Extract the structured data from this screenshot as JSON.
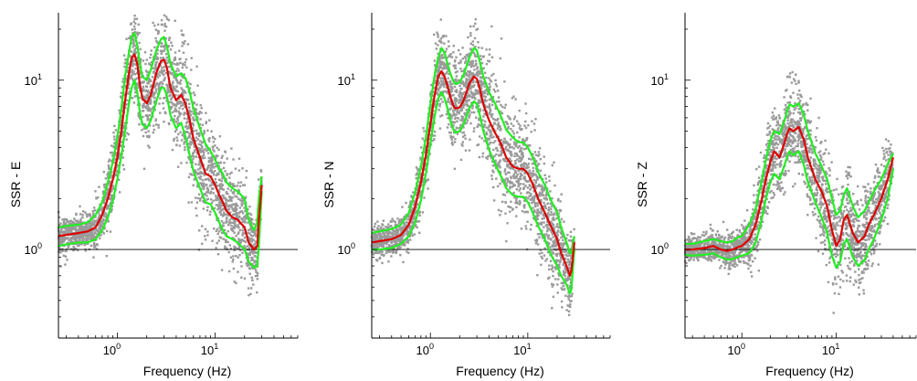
{
  "chart_data": [
    {
      "type": "scatter",
      "xscale": "log",
      "yscale": "log",
      "xlabel": "Frequency (Hz)",
      "ylabel": "SSR - E",
      "xlim": [
        0.25,
        70
      ],
      "ylim": [
        0.3,
        25
      ],
      "xticks": [
        {
          "base": "10",
          "exp": "0",
          "value": 1
        },
        {
          "base": "10",
          "exp": "1",
          "value": 10
        }
      ],
      "yticks": [
        {
          "base": "10",
          "exp": "0",
          "value": 1
        },
        {
          "base": "10",
          "exp": "1",
          "value": 10
        }
      ],
      "reference_line": 1,
      "colors": {
        "scatter": "#9a9a9a",
        "mean": "#dd0000",
        "bounds": "#22ee22",
        "axis": "#000000"
      },
      "x": [
        0.25,
        0.3,
        0.4,
        0.5,
        0.6,
        0.7,
        0.8,
        0.9,
        1.0,
        1.1,
        1.2,
        1.3,
        1.4,
        1.5,
        1.6,
        1.7,
        1.8,
        2.0,
        2.2,
        2.5,
        2.8,
        3.0,
        3.2,
        3.5,
        4.0,
        4.5,
        5.0,
        5.5,
        6.0,
        7.0,
        8.0,
        9.0,
        10.0,
        11.0,
        12.0,
        13.0,
        15.0,
        17.0,
        20.0,
        22.0,
        25.0,
        27.0,
        28.0,
        30.0
      ],
      "series": [
        {
          "name": "mean",
          "values": [
            1.2,
            1.22,
            1.25,
            1.28,
            1.35,
            1.6,
            2.0,
            2.6,
            3.5,
            5.0,
            7.5,
            10.5,
            13.5,
            14.2,
            12.5,
            9.5,
            7.8,
            7.3,
            8.2,
            11.0,
            13.0,
            13.2,
            12.0,
            9.0,
            7.6,
            8.2,
            7.2,
            5.8,
            4.5,
            3.5,
            2.8,
            2.7,
            2.4,
            2.1,
            1.9,
            1.7,
            1.55,
            1.5,
            1.35,
            1.1,
            1.0,
            1.05,
            1.5,
            2.4
          ]
        },
        {
          "name": "upper",
          "values": [
            1.35,
            1.38,
            1.4,
            1.45,
            1.6,
            1.9,
            2.5,
            3.3,
            4.6,
            6.8,
            10.5,
            14.0,
            18.0,
            19.0,
            16.0,
            12.5,
            10.5,
            10.0,
            11.5,
            15.0,
            17.5,
            18.0,
            16.0,
            12.5,
            10.5,
            11.0,
            10.2,
            8.5,
            6.8,
            5.2,
            4.2,
            3.8,
            3.4,
            3.0,
            2.8,
            2.5,
            2.3,
            2.2,
            2.0,
            1.5,
            1.3,
            1.45,
            2.0,
            2.7
          ]
        },
        {
          "name": "lower",
          "values": [
            1.05,
            1.07,
            1.1,
            1.1,
            1.15,
            1.3,
            1.55,
            1.95,
            2.6,
            3.6,
            5.0,
            7.0,
            9.0,
            10.0,
            8.5,
            6.5,
            5.5,
            5.2,
            5.8,
            7.5,
            9.0,
            9.0,
            8.2,
            6.2,
            5.2,
            5.6,
            4.6,
            3.6,
            2.9,
            2.3,
            1.9,
            1.85,
            1.65,
            1.45,
            1.3,
            1.2,
            1.15,
            1.1,
            1.0,
            0.85,
            0.78,
            0.8,
            1.05,
            2.2
          ]
        }
      ]
    },
    {
      "type": "scatter",
      "xscale": "log",
      "yscale": "log",
      "xlabel": "Frequency (Hz)",
      "ylabel": "SSR - N",
      "xlim": [
        0.25,
        70
      ],
      "ylim": [
        0.3,
        25
      ],
      "xticks": [
        {
          "base": "10",
          "exp": "0",
          "value": 1
        },
        {
          "base": "10",
          "exp": "1",
          "value": 10
        }
      ],
      "yticks": [
        {
          "base": "10",
          "exp": "0",
          "value": 1
        },
        {
          "base": "10",
          "exp": "1",
          "value": 10
        }
      ],
      "reference_line": 1,
      "colors": {
        "scatter": "#9a9a9a",
        "mean": "#dd0000",
        "bounds": "#22ee22",
        "axis": "#000000"
      },
      "x": [
        0.25,
        0.3,
        0.4,
        0.5,
        0.6,
        0.7,
        0.8,
        0.9,
        1.0,
        1.1,
        1.2,
        1.3,
        1.4,
        1.5,
        1.6,
        1.7,
        1.8,
        2.0,
        2.2,
        2.5,
        2.8,
        3.0,
        3.2,
        3.5,
        4.0,
        4.5,
        5.0,
        5.5,
        6.0,
        7.0,
        8.0,
        9.0,
        10.0,
        11.0,
        12.0,
        13.0,
        15.0,
        17.0,
        20.0,
        22.0,
        25.0,
        27.0,
        28.0,
        30.0
      ],
      "series": [
        {
          "name": "mean",
          "values": [
            1.1,
            1.12,
            1.15,
            1.22,
            1.4,
            1.8,
            2.5,
            3.6,
            5.5,
            8.0,
            10.5,
            11.3,
            10.5,
            9.2,
            8.0,
            7.2,
            6.8,
            6.9,
            7.6,
            9.5,
            10.5,
            10.2,
            9.0,
            7.2,
            5.8,
            5.0,
            4.5,
            4.0,
            3.5,
            3.1,
            3.0,
            3.0,
            2.8,
            2.5,
            2.2,
            1.95,
            1.65,
            1.4,
            1.15,
            0.95,
            0.8,
            0.7,
            0.75,
            1.1
          ]
        },
        {
          "name": "upper",
          "values": [
            1.25,
            1.28,
            1.32,
            1.4,
            1.65,
            2.2,
            3.1,
            4.6,
            7.2,
            10.5,
            13.5,
            15.5,
            14.5,
            12.5,
            11.0,
            10.0,
            9.5,
            9.7,
            10.8,
            13.5,
            15.5,
            15.0,
            13.0,
            10.5,
            8.5,
            7.5,
            6.6,
            5.8,
            5.1,
            4.6,
            4.3,
            4.3,
            4.0,
            3.6,
            3.2,
            2.8,
            2.4,
            2.0,
            1.65,
            1.35,
            1.1,
            0.95,
            0.95,
            1.2
          ]
        },
        {
          "name": "lower",
          "values": [
            1.0,
            1.0,
            1.02,
            1.08,
            1.2,
            1.45,
            1.95,
            2.8,
            4.2,
            6.0,
            7.8,
            8.5,
            7.8,
            6.8,
            5.8,
            5.2,
            4.9,
            5.0,
            5.5,
            6.8,
            7.5,
            7.2,
            6.3,
            5.0,
            3.9,
            3.3,
            2.9,
            2.6,
            2.3,
            2.1,
            2.05,
            2.05,
            1.9,
            1.7,
            1.5,
            1.35,
            1.15,
            0.95,
            0.8,
            0.7,
            0.62,
            0.55,
            0.58,
            1.0
          ]
        }
      ]
    },
    {
      "type": "scatter",
      "xscale": "log",
      "yscale": "log",
      "xlabel": "Frequency (Hz)",
      "ylabel": "SSR - Z",
      "xlim": [
        0.25,
        70
      ],
      "ylim": [
        0.3,
        25
      ],
      "xticks": [
        {
          "base": "10",
          "exp": "0",
          "value": 1
        },
        {
          "base": "10",
          "exp": "1",
          "value": 10
        }
      ],
      "yticks": [
        {
          "base": "10",
          "exp": "0",
          "value": 1
        },
        {
          "base": "10",
          "exp": "1",
          "value": 10
        }
      ],
      "reference_line": 1,
      "colors": {
        "scatter": "#9a9a9a",
        "mean": "#dd0000",
        "bounds": "#22ee22",
        "axis": "#000000"
      },
      "x": [
        0.25,
        0.3,
        0.4,
        0.5,
        0.6,
        0.7,
        0.8,
        0.9,
        1.0,
        1.2,
        1.4,
        1.6,
        1.8,
        2.0,
        2.2,
        2.5,
        2.8,
        3.0,
        3.2,
        3.5,
        4.0,
        4.5,
        5.0,
        6.0,
        7.0,
        8.0,
        9.0,
        10.0,
        11.0,
        12.0,
        13.0,
        15.0,
        17.0,
        20.0,
        22.0,
        25.0,
        30.0,
        35.0,
        40.0
      ],
      "series": [
        {
          "name": "mean",
          "values": [
            1.0,
            1.0,
            1.02,
            1.05,
            1.0,
            0.98,
            1.0,
            1.03,
            1.05,
            1.15,
            1.4,
            1.9,
            2.6,
            3.3,
            3.8,
            3.5,
            4.2,
            4.8,
            5.2,
            5.0,
            5.3,
            4.5,
            3.5,
            2.6,
            2.2,
            1.8,
            1.3,
            1.05,
            1.15,
            1.5,
            1.6,
            1.25,
            1.1,
            1.2,
            1.4,
            1.6,
            2.0,
            2.6,
            3.5
          ]
        },
        {
          "name": "upper",
          "values": [
            1.08,
            1.08,
            1.12,
            1.15,
            1.12,
            1.1,
            1.12,
            1.18,
            1.2,
            1.4,
            1.75,
            2.45,
            3.4,
            4.4,
            5.0,
            4.8,
            5.7,
            6.5,
            7.2,
            7.0,
            7.3,
            6.3,
            5.0,
            3.7,
            3.1,
            2.6,
            2.0,
            1.6,
            1.7,
            2.1,
            2.3,
            1.8,
            1.55,
            1.7,
            1.9,
            2.2,
            2.6,
            3.2,
            3.7
          ]
        },
        {
          "name": "lower",
          "values": [
            0.93,
            0.92,
            0.93,
            0.95,
            0.9,
            0.87,
            0.88,
            0.9,
            0.92,
            0.95,
            1.1,
            1.45,
            2.0,
            2.5,
            2.8,
            2.6,
            3.1,
            3.5,
            3.8,
            3.6,
            3.8,
            3.2,
            2.5,
            1.9,
            1.55,
            1.25,
            0.92,
            0.78,
            0.85,
            1.08,
            1.15,
            0.9,
            0.8,
            0.87,
            1.0,
            1.15,
            1.5,
            2.0,
            3.0
          ]
        }
      ]
    }
  ]
}
